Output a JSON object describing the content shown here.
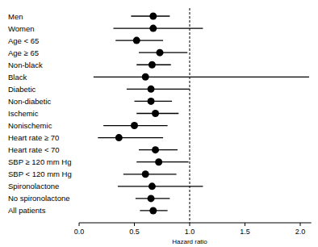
{
  "chart_data": {
    "type": "forest",
    "orientation": "horizontal",
    "color": "#000000",
    "categories": [
      "Men",
      "Women",
      "Age < 65",
      "Age ≥ 65",
      "Non-black",
      "Black",
      "Diabetic",
      "Non-diabetic",
      "Ischemic",
      "Nonischemic",
      "Heart rate ≥ 70",
      "Heart rate < 70",
      "SBP ≥ 120 mm Hg",
      "SBP < 120 mm Hg",
      "Spironolactone",
      "No spironolactone",
      "All patients"
    ],
    "values": [
      0.67,
      0.67,
      0.52,
      0.73,
      0.66,
      0.6,
      0.65,
      0.65,
      0.69,
      0.5,
      0.36,
      0.69,
      0.72,
      0.6,
      0.66,
      0.65,
      0.67
    ],
    "ci_lower": [
      0.47,
      0.31,
      0.33,
      0.54,
      0.52,
      0.13,
      0.43,
      0.5,
      0.52,
      0.22,
      0.17,
      0.54,
      0.52,
      0.4,
      0.35,
      0.51,
      0.55
    ],
    "ci_upper": [
      0.82,
      1.12,
      0.76,
      0.98,
      0.83,
      2.08,
      1.0,
      0.84,
      0.9,
      0.8,
      0.76,
      0.89,
      0.99,
      0.88,
      1.12,
      0.82,
      0.8
    ],
    "x_label": "Hazard ratio",
    "xlim": [
      0,
      2.1
    ],
    "xticks": [
      {
        "value": 0,
        "label": "0.0"
      },
      0.5,
      {
        "value": 1,
        "label": "1.0"
      },
      1.5,
      {
        "value": 2,
        "label": "2.0"
      }
    ],
    "reference_line": 1
  }
}
